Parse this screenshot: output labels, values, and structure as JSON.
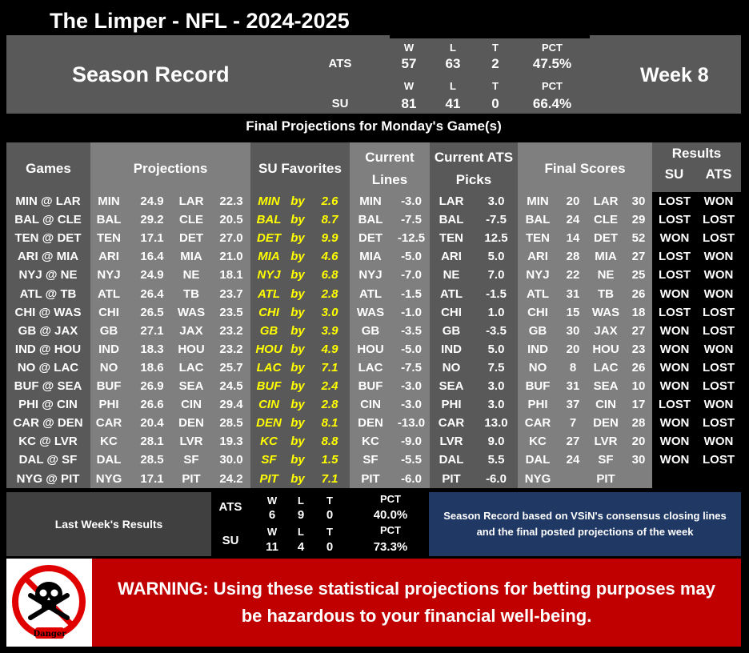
{
  "header": {
    "title": "The Limper - NFL - 2024-2025"
  },
  "season": {
    "title": "Season Record",
    "week": "Week 8",
    "headers": {
      "w": "W",
      "l": "L",
      "t": "T",
      "pct": "PCT"
    },
    "ats": {
      "label": "ATS",
      "w": "57",
      "l": "63",
      "t": "2",
      "pct": "47.5%"
    },
    "su": {
      "label": "SU",
      "w": "81",
      "l": "41",
      "t": "0",
      "pct": "66.4%"
    }
  },
  "subtitle": "Final Projections for Monday's Game(s)",
  "columns": {
    "games": "Games",
    "projections": "Projections",
    "su_favorites": "SU Favorites",
    "current_lines_1": "Current",
    "current_lines_2": "Lines",
    "current_ats_1": "Current ATS",
    "current_ats_2": "Picks",
    "final_scores": "Final Scores",
    "results": "Results",
    "results_su": "SU",
    "results_ats": "ATS"
  },
  "rows": [
    {
      "game": "MIN @ LAR",
      "p_away": "MIN",
      "p_away_score": "24.9",
      "p_home": "LAR",
      "p_home_score": "22.3",
      "fav": "MIN",
      "by": "by",
      "fav_margin": "2.6",
      "line_team": "MIN",
      "line": "-3.0",
      "pick_team": "LAR",
      "pick_line": "3.0",
      "s_away": "MIN",
      "s_away_score": "20",
      "s_home": "LAR",
      "s_home_score": "30",
      "su": "LOST",
      "ats": "WON"
    },
    {
      "game": "BAL @ CLE",
      "p_away": "BAL",
      "p_away_score": "29.2",
      "p_home": "CLE",
      "p_home_score": "20.5",
      "fav": "BAL",
      "by": "by",
      "fav_margin": "8.7",
      "line_team": "BAL",
      "line": "-7.5",
      "pick_team": "BAL",
      "pick_line": "-7.5",
      "s_away": "BAL",
      "s_away_score": "24",
      "s_home": "CLE",
      "s_home_score": "29",
      "su": "LOST",
      "ats": "LOST"
    },
    {
      "game": "TEN @ DET",
      "p_away": "TEN",
      "p_away_score": "17.1",
      "p_home": "DET",
      "p_home_score": "27.0",
      "fav": "DET",
      "by": "by",
      "fav_margin": "9.9",
      "line_team": "DET",
      "line": "-12.5",
      "pick_team": "TEN",
      "pick_line": "12.5",
      "s_away": "TEN",
      "s_away_score": "14",
      "s_home": "DET",
      "s_home_score": "52",
      "su": "WON",
      "ats": "LOST"
    },
    {
      "game": "ARI @ MIA",
      "p_away": "ARI",
      "p_away_score": "16.4",
      "p_home": "MIA",
      "p_home_score": "21.0",
      "fav": "MIA",
      "by": "by",
      "fav_margin": "4.6",
      "line_team": "MIA",
      "line": "-5.0",
      "pick_team": "ARI",
      "pick_line": "5.0",
      "s_away": "ARI",
      "s_away_score": "28",
      "s_home": "MIA",
      "s_home_score": "27",
      "su": "LOST",
      "ats": "WON"
    },
    {
      "game": "NYJ @ NE",
      "p_away": "NYJ",
      "p_away_score": "24.9",
      "p_home": "NE",
      "p_home_score": "18.1",
      "fav": "NYJ",
      "by": "by",
      "fav_margin": "6.8",
      "line_team": "NYJ",
      "line": "-7.0",
      "pick_team": "NE",
      "pick_line": "7.0",
      "s_away": "NYJ",
      "s_away_score": "22",
      "s_home": "NE",
      "s_home_score": "25",
      "su": "LOST",
      "ats": "WON"
    },
    {
      "game": "ATL @ TB",
      "p_away": "ATL",
      "p_away_score": "26.4",
      "p_home": "TB",
      "p_home_score": "23.7",
      "fav": "ATL",
      "by": "by",
      "fav_margin": "2.8",
      "line_team": "ATL",
      "line": "-1.5",
      "pick_team": "ATL",
      "pick_line": "-1.5",
      "s_away": "ATL",
      "s_away_score": "31",
      "s_home": "TB",
      "s_home_score": "26",
      "su": "WON",
      "ats": "WON"
    },
    {
      "game": "CHI @ WAS",
      "p_away": "CHI",
      "p_away_score": "26.5",
      "p_home": "WAS",
      "p_home_score": "23.5",
      "fav": "CHI",
      "by": "by",
      "fav_margin": "3.0",
      "line_team": "WAS",
      "line": "-1.0",
      "pick_team": "CHI",
      "pick_line": "1.0",
      "s_away": "CHI",
      "s_away_score": "15",
      "s_home": "WAS",
      "s_home_score": "18",
      "su": "LOST",
      "ats": "LOST"
    },
    {
      "game": "GB @ JAX",
      "p_away": "GB",
      "p_away_score": "27.1",
      "p_home": "JAX",
      "p_home_score": "23.2",
      "fav": "GB",
      "by": "by",
      "fav_margin": "3.9",
      "line_team": "GB",
      "line": "-3.5",
      "pick_team": "GB",
      "pick_line": "-3.5",
      "s_away": "GB",
      "s_away_score": "30",
      "s_home": "JAX",
      "s_home_score": "27",
      "su": "WON",
      "ats": "LOST"
    },
    {
      "game": "IND @ HOU",
      "p_away": "IND",
      "p_away_score": "18.3",
      "p_home": "HOU",
      "p_home_score": "23.2",
      "fav": "HOU",
      "by": "by",
      "fav_margin": "4.9",
      "line_team": "HOU",
      "line": "-5.0",
      "pick_team": "IND",
      "pick_line": "5.0",
      "s_away": "IND",
      "s_away_score": "20",
      "s_home": "HOU",
      "s_home_score": "23",
      "su": "WON",
      "ats": "WON"
    },
    {
      "game": "NO @ LAC",
      "p_away": "NO",
      "p_away_score": "18.6",
      "p_home": "LAC",
      "p_home_score": "25.7",
      "fav": "LAC",
      "by": "by",
      "fav_margin": "7.1",
      "line_team": "LAC",
      "line": "-7.5",
      "pick_team": "NO",
      "pick_line": "7.5",
      "s_away": "NO",
      "s_away_score": "8",
      "s_home": "LAC",
      "s_home_score": "26",
      "su": "WON",
      "ats": "LOST"
    },
    {
      "game": "BUF @ SEA",
      "p_away": "BUF",
      "p_away_score": "26.9",
      "p_home": "SEA",
      "p_home_score": "24.5",
      "fav": "BUF",
      "by": "by",
      "fav_margin": "2.4",
      "line_team": "BUF",
      "line": "-3.0",
      "pick_team": "SEA",
      "pick_line": "3.0",
      "s_away": "BUF",
      "s_away_score": "31",
      "s_home": "SEA",
      "s_home_score": "10",
      "su": "WON",
      "ats": "LOST"
    },
    {
      "game": "PHI @ CIN",
      "p_away": "PHI",
      "p_away_score": "26.6",
      "p_home": "CIN",
      "p_home_score": "29.4",
      "fav": "CIN",
      "by": "by",
      "fav_margin": "2.8",
      "line_team": "CIN",
      "line": "-3.0",
      "pick_team": "PHI",
      "pick_line": "3.0",
      "s_away": "PHI",
      "s_away_score": "37",
      "s_home": "CIN",
      "s_home_score": "17",
      "su": "LOST",
      "ats": "WON"
    },
    {
      "game": "CAR @ DEN",
      "p_away": "CAR",
      "p_away_score": "20.4",
      "p_home": "DEN",
      "p_home_score": "28.5",
      "fav": "DEN",
      "by": "by",
      "fav_margin": "8.1",
      "line_team": "DEN",
      "line": "-13.0",
      "pick_team": "CAR",
      "pick_line": "13.0",
      "s_away": "CAR",
      "s_away_score": "7",
      "s_home": "DEN",
      "s_home_score": "28",
      "su": "WON",
      "ats": "LOST"
    },
    {
      "game": "KC @ LVR",
      "p_away": "KC",
      "p_away_score": "28.1",
      "p_home": "LVR",
      "p_home_score": "19.3",
      "fav": "KC",
      "by": "by",
      "fav_margin": "8.8",
      "line_team": "KC",
      "line": "-9.0",
      "pick_team": "LVR",
      "pick_line": "9.0",
      "s_away": "KC",
      "s_away_score": "27",
      "s_home": "LVR",
      "s_home_score": "20",
      "su": "WON",
      "ats": "WON"
    },
    {
      "game": "DAL @ SF",
      "p_away": "DAL",
      "p_away_score": "28.5",
      "p_home": "SF",
      "p_home_score": "30.0",
      "fav": "SF",
      "by": "by",
      "fav_margin": "1.5",
      "line_team": "SF",
      "line": "-5.5",
      "pick_team": "DAL",
      "pick_line": "5.5",
      "s_away": "DAL",
      "s_away_score": "24",
      "s_home": "SF",
      "s_home_score": "30",
      "su": "WON",
      "ats": "LOST"
    },
    {
      "game": "NYG @ PIT",
      "p_away": "NYG",
      "p_away_score": "17.1",
      "p_home": "PIT",
      "p_home_score": "24.2",
      "fav": "PIT",
      "by": "by",
      "fav_margin": "7.1",
      "line_team": "PIT",
      "line": "-6.0",
      "pick_team": "PIT",
      "pick_line": "-6.0",
      "s_away": "NYG",
      "s_away_score": "",
      "s_home": "PIT",
      "s_home_score": "",
      "su": "",
      "ats": ""
    }
  ],
  "last_week": {
    "label": "Last Week's Results",
    "headers": {
      "w": "W",
      "l": "L",
      "t": "T",
      "pct": "PCT"
    },
    "ats": {
      "label": "ATS",
      "w": "6",
      "l": "9",
      "t": "0",
      "pct": "40.0%"
    },
    "su": {
      "label": "SU",
      "w": "11",
      "l": "4",
      "t": "0",
      "pct": "73.3%"
    }
  },
  "note": "Season Record based on VSiN's consensus closing lines and the final posted projections of the week",
  "warning": {
    "icon_label": "Danger",
    "text": "WARNING: Using these statistical projections for betting purposes may be hazardous to your financial well-being."
  },
  "colors": {
    "favorite": "#ffff00",
    "warning_bg": "#c00000",
    "note_bg": "#1f3864"
  }
}
